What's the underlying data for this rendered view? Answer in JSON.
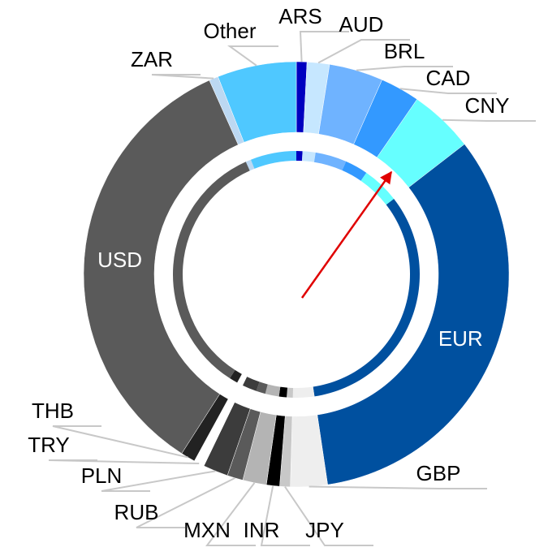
{
  "chart_data": {
    "type": "donut",
    "categories": [
      "ARS",
      "AUD",
      "BRL",
      "CAD",
      "CNY",
      "EUR",
      "GBP",
      "JPY",
      "INR",
      "MXN",
      "RUB",
      "PLN",
      "TRY",
      "THB",
      "USD",
      "ZAR",
      "Other"
    ],
    "values": [
      0.8,
      1.7,
      4.1,
      3.0,
      4.9,
      33.1,
      2.8,
      0.8,
      1.0,
      1.8,
      1.2,
      1.9,
      0.8,
      1.1,
      34.2,
      0.7,
      6.0
    ],
    "colors": [
      "#0000c0",
      "#c6e7ff",
      "#6fb3ff",
      "#3399ff",
      "#66ffff",
      "#00509f",
      "#eeeeee",
      "#c8c8c8",
      "#000000",
      "#b4b4b4",
      "#5a5a5a",
      "#3c3c3c",
      "#ffffff",
      "#222222",
      "#5a5a5a",
      "#bcd8f2",
      "#4fc8ff"
    ]
  }
}
